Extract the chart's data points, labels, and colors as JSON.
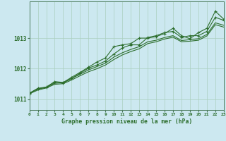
{
  "title": "Graphe pression niveau de la mer (hPa)",
  "bg_color": "#cce8f0",
  "plot_bg_color": "#cce8f0",
  "line_color": "#2d6e2d",
  "grid_color": "#aacfbf",
  "xlim": [
    0,
    23
  ],
  "ylim": [
    1010.65,
    1014.2
  ],
  "yticks": [
    1011,
    1012,
    1013
  ],
  "xticks": [
    0,
    1,
    2,
    3,
    4,
    5,
    6,
    7,
    8,
    9,
    10,
    11,
    12,
    13,
    14,
    15,
    16,
    17,
    18,
    19,
    20,
    21,
    22,
    23
  ],
  "series_smooth1": [
    1011.2,
    1011.33,
    1011.4,
    1011.52,
    1011.55,
    1011.68,
    1011.82,
    1011.96,
    1012.07,
    1012.18,
    1012.38,
    1012.52,
    1012.63,
    1012.72,
    1012.88,
    1012.93,
    1013.02,
    1013.08,
    1012.92,
    1012.95,
    1012.98,
    1013.12,
    1013.5,
    1013.42
  ],
  "series_smooth2": [
    1011.18,
    1011.3,
    1011.37,
    1011.49,
    1011.51,
    1011.63,
    1011.77,
    1011.9,
    1012.0,
    1012.12,
    1012.3,
    1012.45,
    1012.56,
    1012.65,
    1012.82,
    1012.88,
    1012.97,
    1013.03,
    1012.88,
    1012.9,
    1012.93,
    1013.07,
    1013.44,
    1013.36
  ],
  "series_main1": [
    1011.2,
    1011.36,
    1011.4,
    1011.58,
    1011.55,
    1011.72,
    1011.88,
    1012.05,
    1012.22,
    1012.35,
    1012.72,
    1012.78,
    1012.82,
    1013.0,
    1013.0,
    1013.05,
    1013.15,
    1013.32,
    1013.08,
    1012.98,
    1013.18,
    1013.32,
    1013.88,
    1013.62
  ],
  "series_main2": [
    1011.18,
    1011.34,
    1011.38,
    1011.55,
    1011.53,
    1011.68,
    1011.85,
    1012.02,
    1012.12,
    1012.25,
    1012.48,
    1012.68,
    1012.78,
    1012.78,
    1013.02,
    1013.08,
    1013.18,
    1013.22,
    1013.02,
    1013.08,
    1013.08,
    1013.22,
    1013.68,
    1013.58
  ]
}
